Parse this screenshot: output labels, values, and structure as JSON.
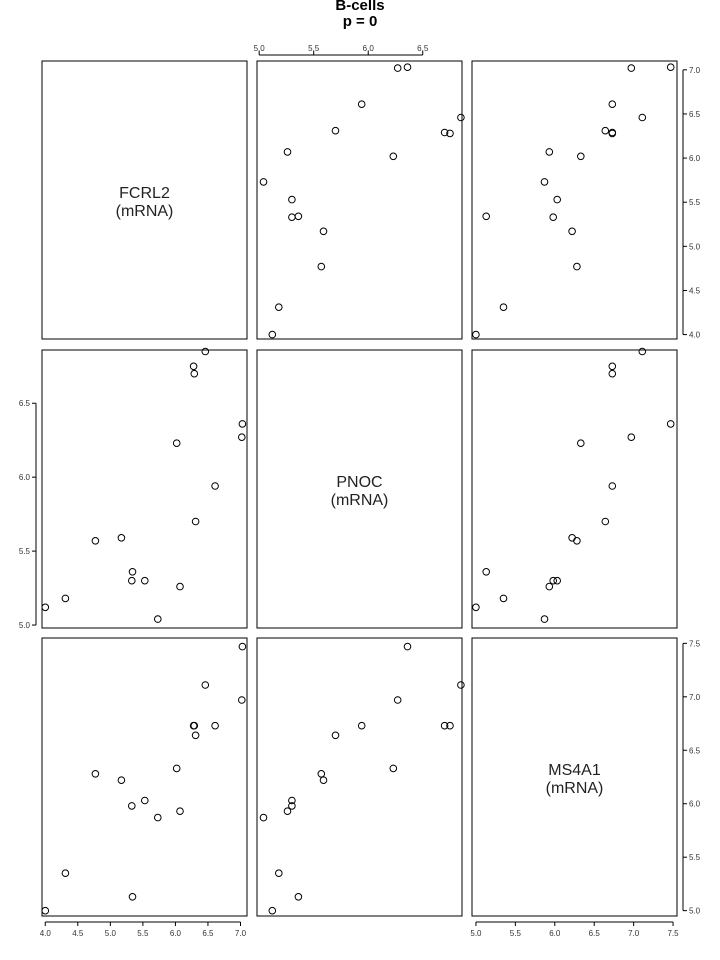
{
  "title": "B-cells",
  "subtitle": "p = 0",
  "chart_data": {
    "type": "scatter",
    "layout": "scatterplot-matrix",
    "title": "B-cells",
    "subtitle": "p = 0",
    "variables": [
      {
        "name": "FCRL2",
        "unit": "(mRNA)",
        "range": [
          3.95,
          7.1
        ],
        "ticks": [
          4.0,
          4.5,
          5.0,
          5.5,
          6.0,
          6.5,
          7.0
        ],
        "tick_labels": [
          "4.0",
          "4.5",
          "5.0",
          "5.5",
          "6.0",
          "6.5",
          "7.0"
        ]
      },
      {
        "name": "PNOC",
        "unit": "(mRNA)",
        "range": [
          4.98,
          6.86
        ],
        "ticks": [
          5.0,
          5.5,
          6.0,
          6.5
        ],
        "tick_labels": [
          "5.0",
          "5.5",
          "6.0",
          "6.5"
        ]
      },
      {
        "name": "MS4A1",
        "unit": "(mRNA)",
        "range": [
          4.95,
          7.55
        ],
        "ticks": [
          5.0,
          5.5,
          6.0,
          6.5,
          7.0,
          7.5
        ],
        "tick_labels": [
          "5.0",
          "5.5",
          "6.0",
          "6.5",
          "7.0",
          "7.5"
        ]
      }
    ],
    "observations": {
      "FCRL2": [
        4.0,
        4.31,
        5.34,
        5.17,
        5.33,
        5.53,
        5.73,
        4.77,
        6.02,
        6.07,
        6.31,
        6.61,
        6.29,
        6.28,
        6.46,
        7.02,
        7.03
      ],
      "PNOC": [
        5.12,
        5.18,
        5.36,
        5.59,
        5.3,
        5.3,
        5.04,
        5.57,
        6.23,
        5.26,
        5.7,
        5.94,
        6.7,
        6.75,
        6.85,
        6.27,
        6.36
      ],
      "MS4A1": [
        5.0,
        5.35,
        5.13,
        6.22,
        5.98,
        6.03,
        5.87,
        6.28,
        6.33,
        5.93,
        6.64,
        6.73,
        6.73,
        6.73,
        7.11,
        6.97,
        7.47
      ]
    }
  }
}
